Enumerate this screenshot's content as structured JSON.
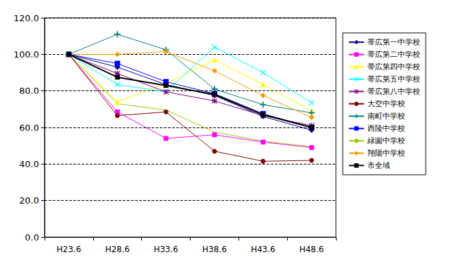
{
  "chart_data": {
    "type": "line",
    "categories": [
      "H23.6",
      "H28.6",
      "H33.6",
      "H38.6",
      "H43.6",
      "H48.6"
    ],
    "ylim": [
      0,
      120
    ],
    "yticks": [
      {
        "value": 0,
        "label": "0.0"
      },
      {
        "value": 20,
        "label": "20.0"
      },
      {
        "value": 40,
        "label": "40.0"
      },
      {
        "value": 60,
        "label": "60.0"
      },
      {
        "value": 80,
        "label": "80.0"
      },
      {
        "value": 100,
        "label": "100.0"
      },
      {
        "value": 120,
        "label": "120.0"
      }
    ],
    "grid": true,
    "legend": "right",
    "series": [
      {
        "name": "帯広第一中学校",
        "color": "#000080",
        "marker": "diamond",
        "values": [
          100,
          93,
          83.5,
          77.5,
          66,
          58.5
        ]
      },
      {
        "name": "帯広第二中学校",
        "color": "#ff00ff",
        "marker": "square",
        "values": [
          100,
          68.5,
          54,
          56,
          52,
          49
        ]
      },
      {
        "name": "帯広第四中学校",
        "color": "#ffff00",
        "marker": "triangle",
        "values": [
          100,
          74,
          84,
          97,
          83.5,
          69
        ]
      },
      {
        "name": "帯広第五中学校",
        "color": "#00ffff",
        "marker": "x",
        "values": [
          100,
          83.5,
          79.5,
          104,
          90,
          73.5
        ]
      },
      {
        "name": "帯広第八中学校",
        "color": "#800080",
        "marker": "star",
        "values": [
          100,
          89.5,
          79.5,
          74.5,
          66.5,
          61
        ]
      },
      {
        "name": "大空中学校",
        "color": "#800000",
        "marker": "circle",
        "values": [
          100,
          66.5,
          68.5,
          47,
          41.5,
          42
        ]
      },
      {
        "name": "南町中学校",
        "color": "#008080",
        "marker": "plus",
        "values": [
          100,
          111,
          102.5,
          81,
          72.5,
          68
        ]
      },
      {
        "name": "西陵中学校",
        "color": "#0000ff",
        "marker": "dash",
        "values": [
          100,
          95,
          85,
          78.5,
          67.5,
          60
        ]
      },
      {
        "name": "緑園中学校",
        "color": "#99cc00",
        "marker": "none",
        "values": [
          100,
          73,
          69.5,
          57.5,
          52.5,
          49.5
        ]
      },
      {
        "name": "翔陽中学校",
        "color": "#ff9900",
        "marker": "diamond",
        "values": [
          100,
          100,
          101.5,
          91,
          77.5,
          65.5
        ]
      },
      {
        "name": "市全域",
        "color": "#000000",
        "marker": "square",
        "values": [
          100,
          87.5,
          83,
          78,
          67,
          60
        ]
      }
    ]
  }
}
